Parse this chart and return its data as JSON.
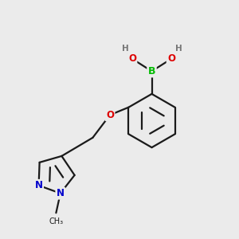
{
  "bg_color": "#ebebeb",
  "bond_color": "#1a1a1a",
  "bond_width": 1.6,
  "dbo": 0.018,
  "atom_colors": {
    "B": "#00bb00",
    "O": "#dd0000",
    "N": "#0000cc",
    "H": "#777777",
    "C": "#1a1a1a"
  },
  "figsize": [
    3.0,
    3.0
  ],
  "dpi": 100,
  "afs": 8.5
}
